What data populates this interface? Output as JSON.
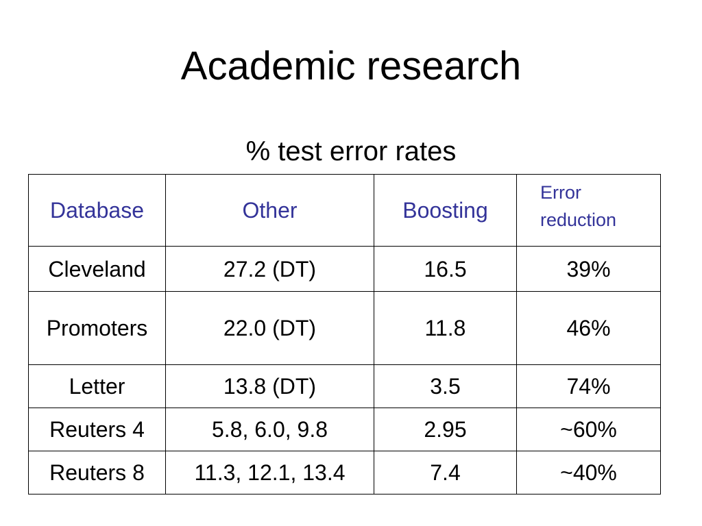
{
  "slide": {
    "title": "Academic research",
    "subtitle": "% test error rates"
  },
  "table": {
    "header": {
      "database": "Database",
      "other": "Other",
      "boosting": "Boosting",
      "error_reduction": "Error reduction"
    },
    "rows": [
      {
        "database": "Cleveland",
        "other": "27.2  (DT)",
        "boosting": "16.5",
        "error_reduction": "39%"
      },
      {
        "database": "Promoters",
        "other": "22.0  (DT)",
        "boosting": "11.8",
        "error_reduction": "46%"
      },
      {
        "database": "Letter",
        "other": "13.8  (DT)",
        "boosting": "3.5",
        "error_reduction": "74%"
      },
      {
        "database": "Reuters 4",
        "other": "5.8, 6.0, 9.8",
        "boosting": "2.95",
        "error_reduction": "~60%"
      },
      {
        "database": "Reuters 8",
        "other": "11.3, 12.1, 13.4",
        "boosting": "7.4",
        "error_reduction": "~40%"
      }
    ],
    "header_color": "#333399",
    "border_color": "#000000"
  }
}
